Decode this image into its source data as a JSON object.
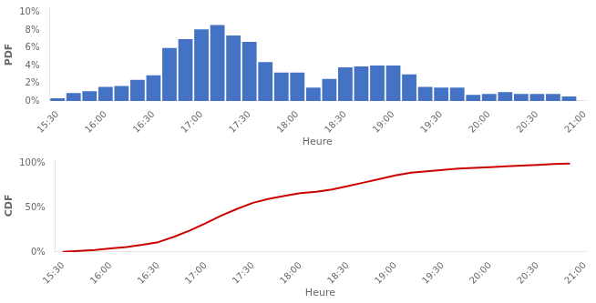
{
  "chart_data": [
    {
      "type": "bar",
      "xlabel": "Heure",
      "ylabel": "PDF",
      "x": [
        930,
        940,
        950,
        960,
        970,
        980,
        990,
        1000,
        1010,
        1020,
        1030,
        1040,
        1050,
        1060,
        1070,
        1080,
        1090,
        1100,
        1110,
        1120,
        1130,
        1140,
        1150,
        1160,
        1170,
        1180,
        1190,
        1200,
        1210,
        1220,
        1230,
        1240,
        1250
      ],
      "values": [
        0.3,
        0.9,
        1.1,
        1.6,
        1.7,
        2.4,
        2.9,
        6.0,
        7.0,
        8.1,
        8.6,
        7.4,
        6.7,
        4.4,
        3.2,
        3.2,
        1.5,
        2.5,
        3.8,
        3.9,
        4.0,
        4.0,
        3.0,
        1.6,
        1.5,
        1.5,
        0.7,
        0.8,
        1.0,
        0.8,
        0.8,
        0.8,
        0.5
      ],
      "color": "#4472C4",
      "xlim": [
        925,
        1260
      ],
      "xticks": [
        {
          "value": 930,
          "label": "15:30"
        },
        {
          "value": 960,
          "label": "16:00"
        },
        {
          "value": 990,
          "label": "16:30"
        },
        {
          "value": 1020,
          "label": "17:00"
        },
        {
          "value": 1050,
          "label": "17:30"
        },
        {
          "value": 1080,
          "label": "18:00"
        },
        {
          "value": 1110,
          "label": "18:30"
        },
        {
          "value": 1140,
          "label": "19:00"
        },
        {
          "value": 1170,
          "label": "19:30"
        },
        {
          "value": 1200,
          "label": "20:00"
        },
        {
          "value": 1230,
          "label": "20:30"
        },
        {
          "value": 1260,
          "label": "21:00"
        }
      ],
      "ylim": [
        0,
        10.5
      ],
      "yticks": [
        {
          "value": 0,
          "label": "0%"
        },
        {
          "value": 2,
          "label": "2%"
        },
        {
          "value": 4,
          "label": "4%"
        },
        {
          "value": 6,
          "label": "6%"
        },
        {
          "value": 8,
          "label": "8%"
        },
        {
          "value": 10,
          "label": "10%"
        }
      ],
      "grid": false
    },
    {
      "type": "line",
      "xlabel": "Heure",
      "ylabel": "CDF",
      "x": [
        930,
        940,
        950,
        960,
        970,
        980,
        990,
        1000,
        1010,
        1020,
        1030,
        1040,
        1050,
        1060,
        1070,
        1080,
        1090,
        1100,
        1110,
        1120,
        1130,
        1140,
        1150,
        1160,
        1170,
        1180,
        1190,
        1200,
        1210,
        1220,
        1230,
        1240,
        1250
      ],
      "values": [
        0.305,
        1.222,
        2.342,
        3.971,
        5.703,
        8.147,
        11.1,
        17.21,
        24.338,
        32.587,
        41.344,
        48.88,
        55.703,
        60.183,
        63.442,
        66.701,
        68.228,
        70.774,
        74.644,
        78.615,
        82.688,
        86.762,
        89.817,
        91.446,
        92.974,
        94.501,
        95.214,
        96.029,
        97.047,
        97.862,
        98.676,
        99.491,
        100
      ],
      "color": "#CC0000",
      "xlim": [
        925,
        1260
      ],
      "xticks": [
        {
          "value": 930,
          "label": "15:30"
        },
        {
          "value": 960,
          "label": "16:00"
        },
        {
          "value": 990,
          "label": "16:30"
        },
        {
          "value": 1020,
          "label": "17:00"
        },
        {
          "value": 1050,
          "label": "17:30"
        },
        {
          "value": 1080,
          "label": "18:00"
        },
        {
          "value": 1110,
          "label": "18:30"
        },
        {
          "value": 1140,
          "label": "19:00"
        },
        {
          "value": 1170,
          "label": "19:30"
        },
        {
          "value": 1200,
          "label": "20:00"
        },
        {
          "value": 1230,
          "label": "20:30"
        },
        {
          "value": 1260,
          "label": "21:00"
        }
      ],
      "ylim": [
        0,
        105
      ],
      "yticks": [
        {
          "value": 0,
          "label": "0%"
        },
        {
          "value": 50,
          "label": "50%"
        },
        {
          "value": 100,
          "label": "100%"
        }
      ],
      "grid": false
    }
  ]
}
